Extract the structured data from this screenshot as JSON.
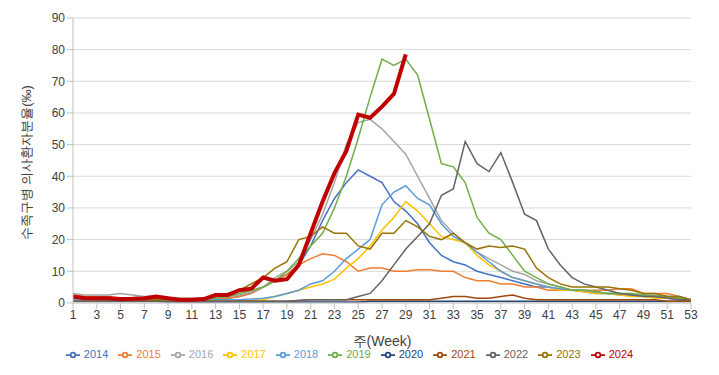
{
  "chart_data": {
    "type": "line",
    "x_label": "주(Week)",
    "y_label": "수족구병 의사환자분율(‰)",
    "x": [
      1,
      2,
      3,
      4,
      5,
      6,
      7,
      8,
      9,
      10,
      11,
      12,
      13,
      14,
      15,
      16,
      17,
      18,
      19,
      20,
      21,
      22,
      23,
      24,
      25,
      26,
      27,
      28,
      29,
      30,
      31,
      32,
      33,
      34,
      35,
      36,
      37,
      38,
      39,
      40,
      41,
      42,
      43,
      44,
      45,
      46,
      47,
      48,
      49,
      50,
      51,
      52,
      53
    ],
    "xlim": [
      1,
      53
    ],
    "xticks": [
      1,
      3,
      5,
      7,
      9,
      11,
      13,
      15,
      17,
      19,
      21,
      23,
      25,
      27,
      29,
      31,
      33,
      35,
      37,
      39,
      41,
      43,
      45,
      47,
      49,
      51,
      53
    ],
    "ylim": [
      0,
      90
    ],
    "yticks": [
      0,
      10,
      20,
      30,
      40,
      50,
      60,
      70,
      80,
      90
    ],
    "grid": true,
    "legend": "bottom",
    "series": [
      {
        "name": "2014",
        "color": "#4472C4",
        "values": [
          2,
          2,
          1.5,
          1.5,
          1.5,
          1.5,
          1.5,
          1.5,
          1.5,
          1.2,
          1.2,
          1.2,
          1.5,
          1.5,
          2,
          3,
          5,
          7,
          9,
          12,
          18,
          26,
          33,
          38,
          42,
          40,
          38,
          32,
          29,
          25,
          19,
          15,
          13,
          12,
          10,
          9,
          8,
          7,
          6,
          5,
          5,
          4,
          4,
          3.5,
          3,
          3,
          2.5,
          2.5,
          2,
          2,
          2,
          1.5,
          1
        ]
      },
      {
        "name": "2015",
        "color": "#ED7D31",
        "values": [
          2.5,
          2,
          2,
          2,
          1.5,
          1.5,
          1.5,
          1.2,
          1.2,
          1,
          1,
          1,
          1.2,
          1.5,
          2,
          3,
          5,
          7,
          9,
          12,
          14,
          15.5,
          15,
          13,
          10,
          11,
          11,
          10,
          10,
          10.5,
          10.5,
          10,
          10,
          8,
          7,
          7,
          6,
          6,
          5,
          5,
          4,
          4,
          4,
          4,
          4,
          4,
          4.5,
          4.5,
          3,
          3,
          3,
          2,
          1
        ]
      },
      {
        "name": "2016",
        "color": "#A5A5A5",
        "values": [
          3,
          2.5,
          2.5,
          2.5,
          3,
          2.5,
          2,
          2,
          1.5,
          1.5,
          1.5,
          1.5,
          2,
          2,
          2.5,
          3.5,
          5,
          8,
          10,
          13,
          20,
          28,
          38,
          50,
          57,
          58,
          55,
          51,
          47,
          40,
          33,
          26,
          22,
          19,
          16,
          14,
          12,
          10,
          9,
          7,
          6,
          5,
          4,
          4,
          3.5,
          3,
          3,
          3,
          2.5,
          2.5,
          2,
          2,
          1
        ]
      },
      {
        "name": "2017",
        "color": "#FFC000",
        "values": [
          0.5,
          0.5,
          0.5,
          0.5,
          0.5,
          0.5,
          0.5,
          0.5,
          0.5,
          0.5,
          0.5,
          0.5,
          0.5,
          0.5,
          0.5,
          0.8,
          1,
          2,
          3,
          4,
          5,
          6,
          7.5,
          11,
          14,
          18,
          23,
          27,
          32,
          29,
          25,
          21,
          20,
          19,
          15,
          12,
          10,
          8,
          7,
          6,
          5,
          4,
          4,
          3.5,
          3,
          3,
          2.5,
          2,
          2,
          1.5,
          1.5,
          1,
          0.5
        ]
      },
      {
        "name": "2018",
        "color": "#5B9BD5",
        "values": [
          1,
          1,
          1,
          1,
          1,
          1,
          1,
          1,
          1,
          1,
          1,
          1,
          1,
          1,
          1,
          1.2,
          1.5,
          2,
          3,
          4,
          6,
          7,
          10,
          14,
          17,
          20,
          31,
          35,
          37,
          33,
          31,
          25,
          21,
          19,
          16,
          13,
          10,
          8,
          7,
          6,
          5,
          4.5,
          4,
          4,
          3.5,
          3,
          3,
          2.5,
          2.5,
          2,
          2,
          1.5,
          1
        ]
      },
      {
        "name": "2019",
        "color": "#70AD47",
        "values": [
          1.5,
          1.5,
          1.5,
          1.5,
          1.2,
          1.2,
          1,
          1,
          1,
          1,
          1,
          1,
          1.5,
          2,
          3,
          4,
          5,
          7,
          10,
          14,
          18,
          22,
          30,
          40,
          52,
          65,
          77,
          75,
          77,
          72,
          58,
          44,
          43,
          38,
          27,
          22,
          20,
          15,
          10,
          8,
          6,
          5,
          4,
          4,
          3.5,
          3,
          3,
          3,
          2.5,
          2,
          2,
          1.5,
          1
        ]
      },
      {
        "name": "2020",
        "color": "#264478",
        "values": [
          2,
          1.5,
          1.5,
          1,
          0.8,
          0.5,
          0.5,
          0.5,
          0.3,
          0.3,
          0.3,
          0.3,
          0.3,
          0.3,
          0.3,
          0.3,
          0.3,
          0.3,
          0.3,
          0.3,
          0.3,
          0.3,
          0.3,
          0.3,
          0.3,
          0.5,
          0.5,
          0.5,
          0.5,
          0.5,
          0.5,
          0.5,
          0.5,
          0.5,
          0.5,
          0.5,
          0.5,
          0.5,
          0.5,
          0.5,
          0.5,
          0.5,
          0.5,
          0.5,
          0.5,
          0.5,
          0.5,
          0.5,
          0.5,
          0.5,
          0.5,
          0.5,
          0.5
        ]
      },
      {
        "name": "2021",
        "color": "#9E480E",
        "values": [
          0.5,
          0.5,
          0.5,
          0.5,
          0.5,
          0.5,
          0.5,
          0.5,
          0.5,
          0.5,
          0.5,
          0.5,
          0.5,
          0.5,
          0.5,
          0.5,
          0.5,
          0.5,
          0.5,
          0.8,
          1,
          1,
          1,
          1,
          1,
          1,
          1,
          1,
          1,
          1,
          1,
          1.5,
          2,
          2,
          1.5,
          1.5,
          2,
          2.5,
          1.5,
          1,
          1,
          1,
          1,
          1,
          1,
          1,
          1,
          1,
          1,
          1,
          0.5,
          0.5,
          0.5
        ]
      },
      {
        "name": "2022",
        "color": "#636363",
        "values": [
          0.5,
          0.5,
          0.5,
          0.5,
          0.5,
          0.5,
          0.5,
          0.5,
          0.5,
          0.5,
          0.5,
          0.5,
          0.5,
          0.5,
          0.5,
          0.5,
          0.5,
          0.5,
          0.5,
          0.8,
          1,
          1,
          1,
          1,
          2,
          3,
          7,
          12,
          17,
          21,
          25,
          34,
          36,
          51,
          44,
          41.5,
          47.5,
          38,
          28,
          26,
          17,
          12,
          8,
          6,
          5,
          4,
          3,
          2.5,
          2,
          2,
          1.5,
          1,
          1
        ]
      },
      {
        "name": "2023",
        "color": "#997300",
        "values": [
          1.5,
          1.5,
          1.5,
          1.5,
          1.2,
          1,
          1,
          1,
          1,
          1,
          1,
          1.2,
          2,
          3,
          4,
          6,
          8,
          11,
          13,
          20,
          21,
          24,
          22,
          22,
          18,
          17,
          22,
          22,
          26,
          24,
          21,
          20,
          22,
          19,
          17,
          18,
          17.5,
          18,
          17,
          11,
          8,
          6,
          5,
          5,
          5,
          5,
          4.5,
          4,
          3,
          3,
          2,
          2,
          1
        ]
      },
      {
        "name": "2024",
        "color": "#C00000",
        "values": [
          2,
          1.5,
          1.5,
          1.5,
          1.2,
          1.3,
          1.5,
          2,
          1.5,
          1,
          1,
          1.2,
          2.5,
          2.5,
          4,
          4.5,
          8,
          7,
          7.5,
          12,
          22,
          32,
          41,
          48,
          59.5,
          58.5,
          62,
          66,
          78.5,
          null,
          null,
          null,
          null,
          null,
          null,
          null,
          null,
          null,
          null,
          null,
          null,
          null,
          null,
          null,
          null,
          null,
          null,
          null,
          null,
          null,
          null,
          null,
          null
        ]
      }
    ]
  }
}
